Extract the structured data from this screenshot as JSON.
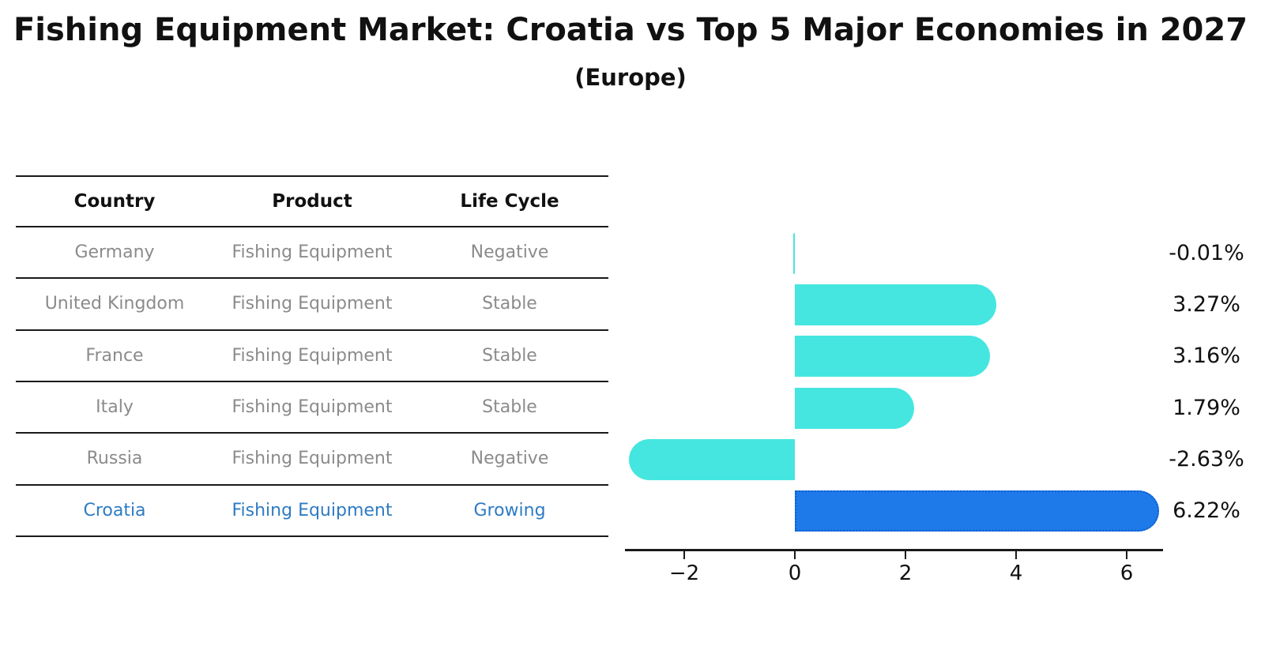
{
  "title": "Fishing Equipment Market: Croatia vs Top 5 Major Economies in 2027",
  "subtitle": "(Europe)",
  "table": {
    "headers": [
      "Country",
      "Product",
      "Life Cycle"
    ],
    "rows": [
      {
        "country": "Germany",
        "product": "Fishing Equipment",
        "life_cycle": "Negative",
        "highlight": false
      },
      {
        "country": "United Kingdom",
        "product": "Fishing Equipment",
        "life_cycle": "Stable",
        "highlight": false
      },
      {
        "country": "France",
        "product": "Fishing Equipment",
        "life_cycle": "Stable",
        "highlight": false
      },
      {
        "country": "Italy",
        "product": "Fishing Equipment",
        "life_cycle": "Stable",
        "highlight": false
      },
      {
        "country": "Russia",
        "product": "Fishing Equipment",
        "life_cycle": "Negative",
        "highlight": false
      },
      {
        "country": "Croatia",
        "product": "Fishing Equipment",
        "life_cycle": "Growing",
        "highlight": true
      }
    ]
  },
  "chart_data": {
    "type": "bar",
    "orientation": "horizontal",
    "title": "Fishing Equipment Market: Croatia vs Top 5 Major Economies in 2027 (Europe)",
    "categories": [
      "Germany",
      "United Kingdom",
      "France",
      "Italy",
      "Russia",
      "Croatia"
    ],
    "values": [
      -0.01,
      3.27,
      3.16,
      1.79,
      -2.63,
      6.22
    ],
    "value_labels": [
      "-0.01%",
      "3.27%",
      "3.16%",
      "1.79%",
      "-2.63%",
      "6.22%"
    ],
    "highlight_index": 5,
    "xticks": [
      -2,
      0,
      2,
      4,
      6
    ],
    "xtick_labels": [
      "−2",
      "0",
      "2",
      "4",
      "6"
    ],
    "xlim": [
      -3.07,
      6.66
    ],
    "grid": false,
    "legend": false,
    "bar_color": "#45e6e0",
    "highlight_bar_color": "#1e7ae8",
    "highlight_border_color": "#0f5ecf"
  },
  "colors": {
    "text": "#111111",
    "muted_text": "#8b8b8b",
    "highlight_text": "#2e7bc3",
    "line": "#1a1a1a",
    "background": "#ffffff"
  }
}
